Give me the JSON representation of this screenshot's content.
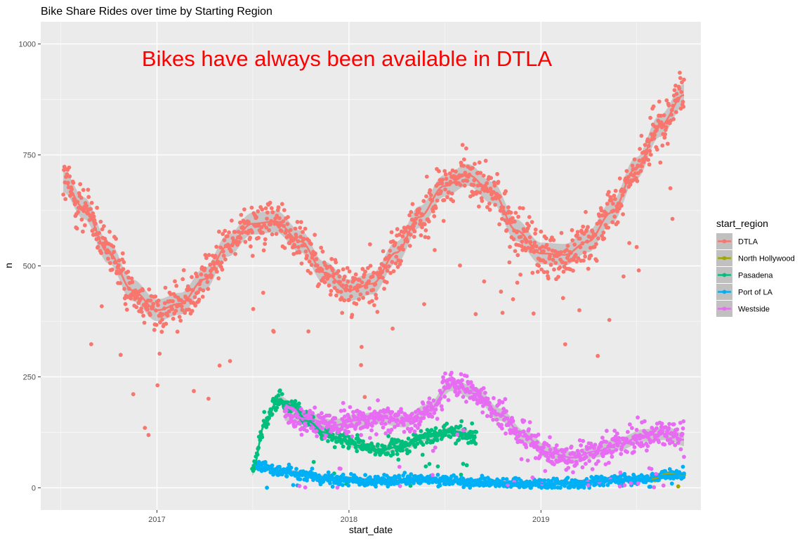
{
  "chart_data": {
    "type": "scatter",
    "title": "Bike Share Rides over time by Starting Region",
    "annotation": "Bikes have always been available in DTLA",
    "xlabel": "start_date",
    "ylabel": "n",
    "x_ticks": [
      "2017",
      "2018",
      "2019"
    ],
    "y_ticks": [
      0,
      250,
      500,
      750,
      1000
    ],
    "ylim": [
      -50,
      1050
    ],
    "xlim": [
      "2016-05-25",
      "2019-11-01"
    ],
    "grid": true,
    "legend": {
      "title": "start_region",
      "placement": "right"
    },
    "colors": {
      "panel": "#EBEBEB",
      "grid_major": "#FFFFFF",
      "annotation": "#FF0000",
      "smooth_band": "#999999"
    },
    "series": [
      {
        "name": "DTLA",
        "color": "#F8766D",
        "x_start": "2016-07-07",
        "x_end": "2019-09-30",
        "smooth": [
          [
            "2016-07-07",
            690
          ],
          [
            "2016-08-15",
            630
          ],
          [
            "2016-10-01",
            530
          ],
          [
            "2016-11-15",
            445
          ],
          [
            "2017-01-01",
            400
          ],
          [
            "2017-02-15",
            415
          ],
          [
            "2017-04-01",
            470
          ],
          [
            "2017-05-15",
            545
          ],
          [
            "2017-07-01",
            595
          ],
          [
            "2017-08-15",
            600
          ],
          [
            "2017-10-01",
            555
          ],
          [
            "2017-11-15",
            485
          ],
          [
            "2018-01-01",
            445
          ],
          [
            "2018-02-15",
            460
          ],
          [
            "2018-04-01",
            530
          ],
          [
            "2018-05-15",
            610
          ],
          [
            "2018-07-01",
            680
          ],
          [
            "2018-08-15",
            705
          ],
          [
            "2018-10-01",
            665
          ],
          [
            "2018-11-15",
            580
          ],
          [
            "2019-01-01",
            528
          ],
          [
            "2019-02-15",
            525
          ],
          [
            "2019-04-01",
            555
          ],
          [
            "2019-05-15",
            620
          ],
          [
            "2019-07-01",
            720
          ],
          [
            "2019-08-15",
            815
          ],
          [
            "2019-09-30",
            885
          ]
        ],
        "spread": 70
      },
      {
        "name": "North Hollywood",
        "color": "#A3A500",
        "x_start": "2019-07-31",
        "x_end": "2019-09-30",
        "smooth": [
          [
            "2019-07-31",
            20
          ],
          [
            "2019-08-30",
            32
          ],
          [
            "2019-09-30",
            28
          ]
        ],
        "spread": 8
      },
      {
        "name": "Pasadena",
        "color": "#00BF7D",
        "x_start": "2017-07-01",
        "x_end": "2018-08-31",
        "smooth": [
          [
            "2017-07-01",
            35
          ],
          [
            "2017-07-25",
            145
          ],
          [
            "2017-08-20",
            200
          ],
          [
            "2017-09-15",
            185
          ],
          [
            "2017-10-15",
            150
          ],
          [
            "2017-11-15",
            125
          ],
          [
            "2017-12-15",
            110
          ],
          [
            "2018-01-20",
            95
          ],
          [
            "2018-03-01",
            85
          ],
          [
            "2018-04-15",
            95
          ],
          [
            "2018-06-01",
            115
          ],
          [
            "2018-07-15",
            128
          ],
          [
            "2018-08-31",
            118
          ]
        ],
        "spread": 25
      },
      {
        "name": "Port of LA",
        "color": "#00B0F6",
        "x_start": "2017-07-07",
        "x_end": "2019-09-30",
        "smooth": [
          [
            "2017-07-07",
            50
          ],
          [
            "2017-09-01",
            35
          ],
          [
            "2017-12-01",
            22
          ],
          [
            "2018-03-01",
            15
          ],
          [
            "2018-06-01",
            18
          ],
          [
            "2018-09-01",
            14
          ],
          [
            "2018-12-01",
            10
          ],
          [
            "2019-03-01",
            10
          ],
          [
            "2019-06-01",
            18
          ],
          [
            "2019-09-30",
            30
          ]
        ],
        "spread": 15
      },
      {
        "name": "Westside",
        "color": "#E76BF3",
        "x_start": "2017-09-01",
        "x_end": "2019-09-30",
        "smooth": [
          [
            "2017-09-01",
            165
          ],
          [
            "2017-10-15",
            155
          ],
          [
            "2017-12-01",
            140
          ],
          [
            "2018-01-15",
            152
          ],
          [
            "2018-03-01",
            158
          ],
          [
            "2018-04-15",
            150
          ],
          [
            "2018-06-01",
            175
          ],
          [
            "2018-07-15",
            232
          ],
          [
            "2018-08-31",
            212
          ],
          [
            "2018-10-15",
            165
          ],
          [
            "2018-12-01",
            115
          ],
          [
            "2019-01-15",
            80
          ],
          [
            "2019-03-01",
            68
          ],
          [
            "2019-04-15",
            82
          ],
          [
            "2019-06-01",
            100
          ],
          [
            "2019-07-15",
            118
          ],
          [
            "2019-08-31",
            122
          ],
          [
            "2019-09-30",
            108
          ]
        ],
        "spread": 40
      }
    ]
  }
}
